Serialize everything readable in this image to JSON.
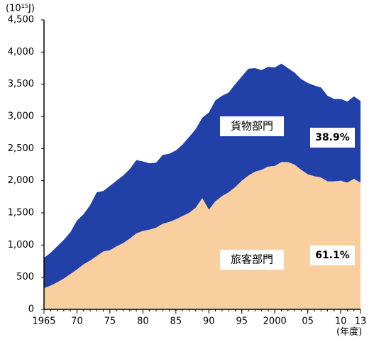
{
  "chart_data": {
    "type": "stacked-area",
    "y_unit": "(10¹⁵J)",
    "x_unit": "(年度)",
    "x": [
      1965,
      1966,
      1967,
      1968,
      1969,
      1970,
      1971,
      1972,
      1973,
      1974,
      1975,
      1976,
      1977,
      1978,
      1979,
      1980,
      1981,
      1982,
      1983,
      1984,
      1985,
      1986,
      1987,
      1988,
      1989,
      1990,
      1991,
      1992,
      1993,
      1994,
      1995,
      1996,
      1997,
      1998,
      1999,
      2000,
      2001,
      2002,
      2003,
      2004,
      2005,
      2006,
      2007,
      2008,
      2009,
      2010,
      2011,
      2012,
      2013
    ],
    "series": [
      {
        "name": "旅客部門",
        "color": "#f9cfa0",
        "share": "61.1%",
        "values": [
          330,
          370,
          420,
          480,
          550,
          620,
          700,
          760,
          830,
          900,
          920,
          980,
          1030,
          1100,
          1180,
          1220,
          1240,
          1270,
          1330,
          1360,
          1400,
          1450,
          1500,
          1580,
          1730,
          1550,
          1680,
          1760,
          1820,
          1900,
          2000,
          2080,
          2140,
          2170,
          2220,
          2230,
          2290,
          2290,
          2250,
          2170,
          2100,
          2070,
          2050,
          1990,
          1990,
          2000,
          1970,
          2030,
          1970
        ]
      },
      {
        "name": "貨物部門",
        "color": "#2140a8",
        "share": "38.9%",
        "values": [
          470,
          510,
          560,
          600,
          650,
          760,
          780,
          860,
          990,
          940,
          1000,
          1020,
          1050,
          1080,
          1140,
          1080,
          1030,
          1010,
          1070,
          1060,
          1070,
          1110,
          1180,
          1220,
          1250,
          1510,
          1570,
          1560,
          1550,
          1600,
          1620,
          1660,
          1610,
          1550,
          1550,
          1530,
          1530,
          1460,
          1430,
          1410,
          1420,
          1410,
          1400,
          1330,
          1280,
          1270,
          1260,
          1280,
          1270
        ]
      }
    ],
    "xlim": [
      1965,
      2013
    ],
    "xticks": [
      1965,
      {
        "value": 1970,
        "label": "70"
      },
      {
        "value": 1975,
        "label": "75"
      },
      {
        "value": 1980,
        "label": "80"
      },
      {
        "value": 1985,
        "label": "85"
      },
      {
        "value": 1990,
        "label": "90"
      },
      {
        "value": 1995,
        "label": "95"
      },
      2000,
      {
        "value": 2005,
        "label": "05"
      },
      {
        "value": 2010,
        "label": "10"
      },
      {
        "value": 2013,
        "label": "13"
      }
    ],
    "ylim": [
      0,
      4500
    ],
    "yticks": [
      0,
      500,
      {
        "value": 1000,
        "label": "1,000"
      },
      {
        "value": 1500,
        "label": "1,500"
      },
      {
        "value": 2000,
        "label": "2,000"
      },
      {
        "value": 2500,
        "label": "2,500"
      },
      {
        "value": 3000,
        "label": "3,000"
      },
      {
        "value": 3500,
        "label": "3,500"
      },
      {
        "value": 4000,
        "label": "4,000"
      },
      {
        "value": 4500,
        "label": "4,500"
      }
    ]
  }
}
